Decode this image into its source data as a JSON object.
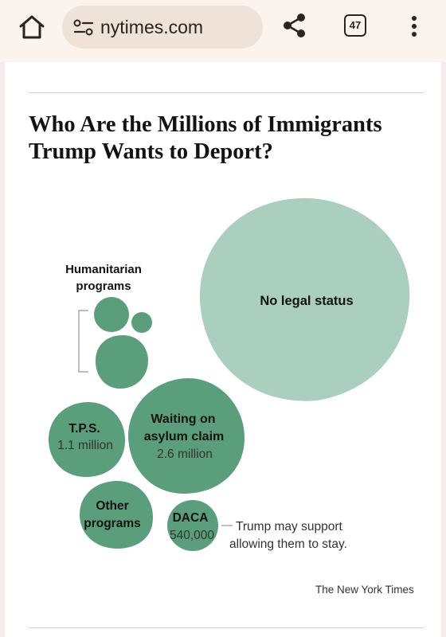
{
  "browser": {
    "url": "nytimes.com",
    "tab_count": "47",
    "icons": [
      "home-icon",
      "site-settings-icon",
      "share-icon",
      "tabs-icon",
      "more-vert-icon"
    ]
  },
  "article": {
    "headline": "Who Are the Millions of Immigrants Trump Wants to Deport?",
    "credit": "The New York Times"
  },
  "graphic": {
    "colors": {
      "dark_green": "#5b9e7c",
      "light_green": "#aacfbf",
      "bracket": "#aaaaaa"
    },
    "groups": [
      {
        "id": "no-legal-status",
        "label": "No legal status",
        "value": ""
      },
      {
        "id": "tps",
        "label": "T.P.S.",
        "value": "1.1 million"
      },
      {
        "id": "asylum",
        "label": "Waiting on asylum claim",
        "label_lines": [
          "Waiting on",
          "asylum claim"
        ],
        "value": "2.6 million"
      },
      {
        "id": "other-programs",
        "label": "Other programs",
        "label_lines": [
          "Other",
          "programs"
        ],
        "value": ""
      },
      {
        "id": "daca",
        "label": "DACA",
        "value": "540,000"
      }
    ],
    "humanitarian_label_lines": [
      "Humanitarian",
      "programs"
    ],
    "daca_note_lines": [
      "Trump may support",
      "allowing them to stay."
    ]
  }
}
